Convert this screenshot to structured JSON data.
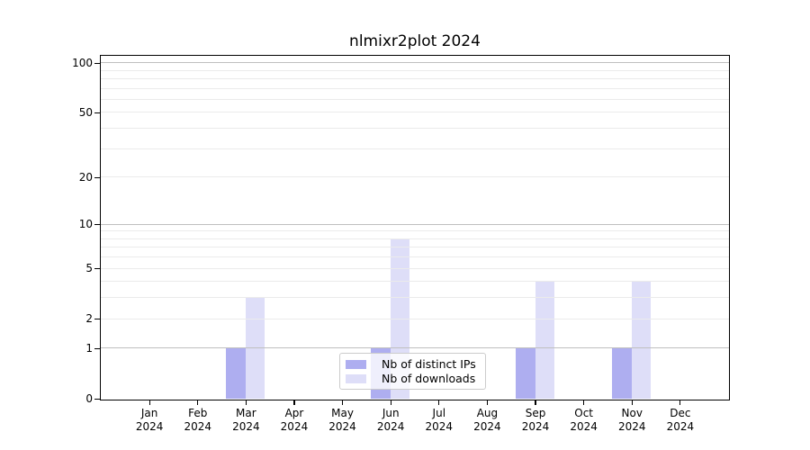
{
  "title": "nlmixr2plot 2024",
  "chart_data": {
    "type": "bar",
    "title": "nlmixr2plot 2024",
    "categories": [
      "Jan",
      "Feb",
      "Mar",
      "Apr",
      "May",
      "Jun",
      "Jul",
      "Aug",
      "Sep",
      "Oct",
      "Nov",
      "Dec"
    ],
    "category_year": "2024",
    "series": [
      {
        "name": "Nb of distinct IPs",
        "color": "#aeaef0",
        "values": [
          0,
          0,
          1,
          0,
          0,
          1,
          0,
          0,
          1,
          0,
          1,
          0
        ]
      },
      {
        "name": "Nb of downloads",
        "color": "#dedef8",
        "values": [
          0,
          0,
          3,
          0,
          0,
          8,
          0,
          0,
          4,
          0,
          4,
          0
        ]
      }
    ],
    "yscale": "log1p",
    "ylim": [
      0,
      110
    ],
    "ytick_labels": [
      0,
      1,
      2,
      5,
      10,
      20,
      50,
      100
    ],
    "gridlines_major": [
      1,
      10,
      100
    ],
    "gridlines_minor": [
      2,
      3,
      4,
      5,
      6,
      7,
      8,
      9,
      20,
      30,
      40,
      50,
      60,
      70,
      80,
      90
    ],
    "grid": true,
    "legend_position": "lower center"
  },
  "colors": {
    "bar_distinct_ips": "#aeaef0",
    "bar_downloads": "#dedef8",
    "gridline_major": "#bfbfbf",
    "gridline_minor": "#ebebeb",
    "axis": "#000000",
    "legend_border": "#cccccc",
    "background": "#ffffff"
  }
}
